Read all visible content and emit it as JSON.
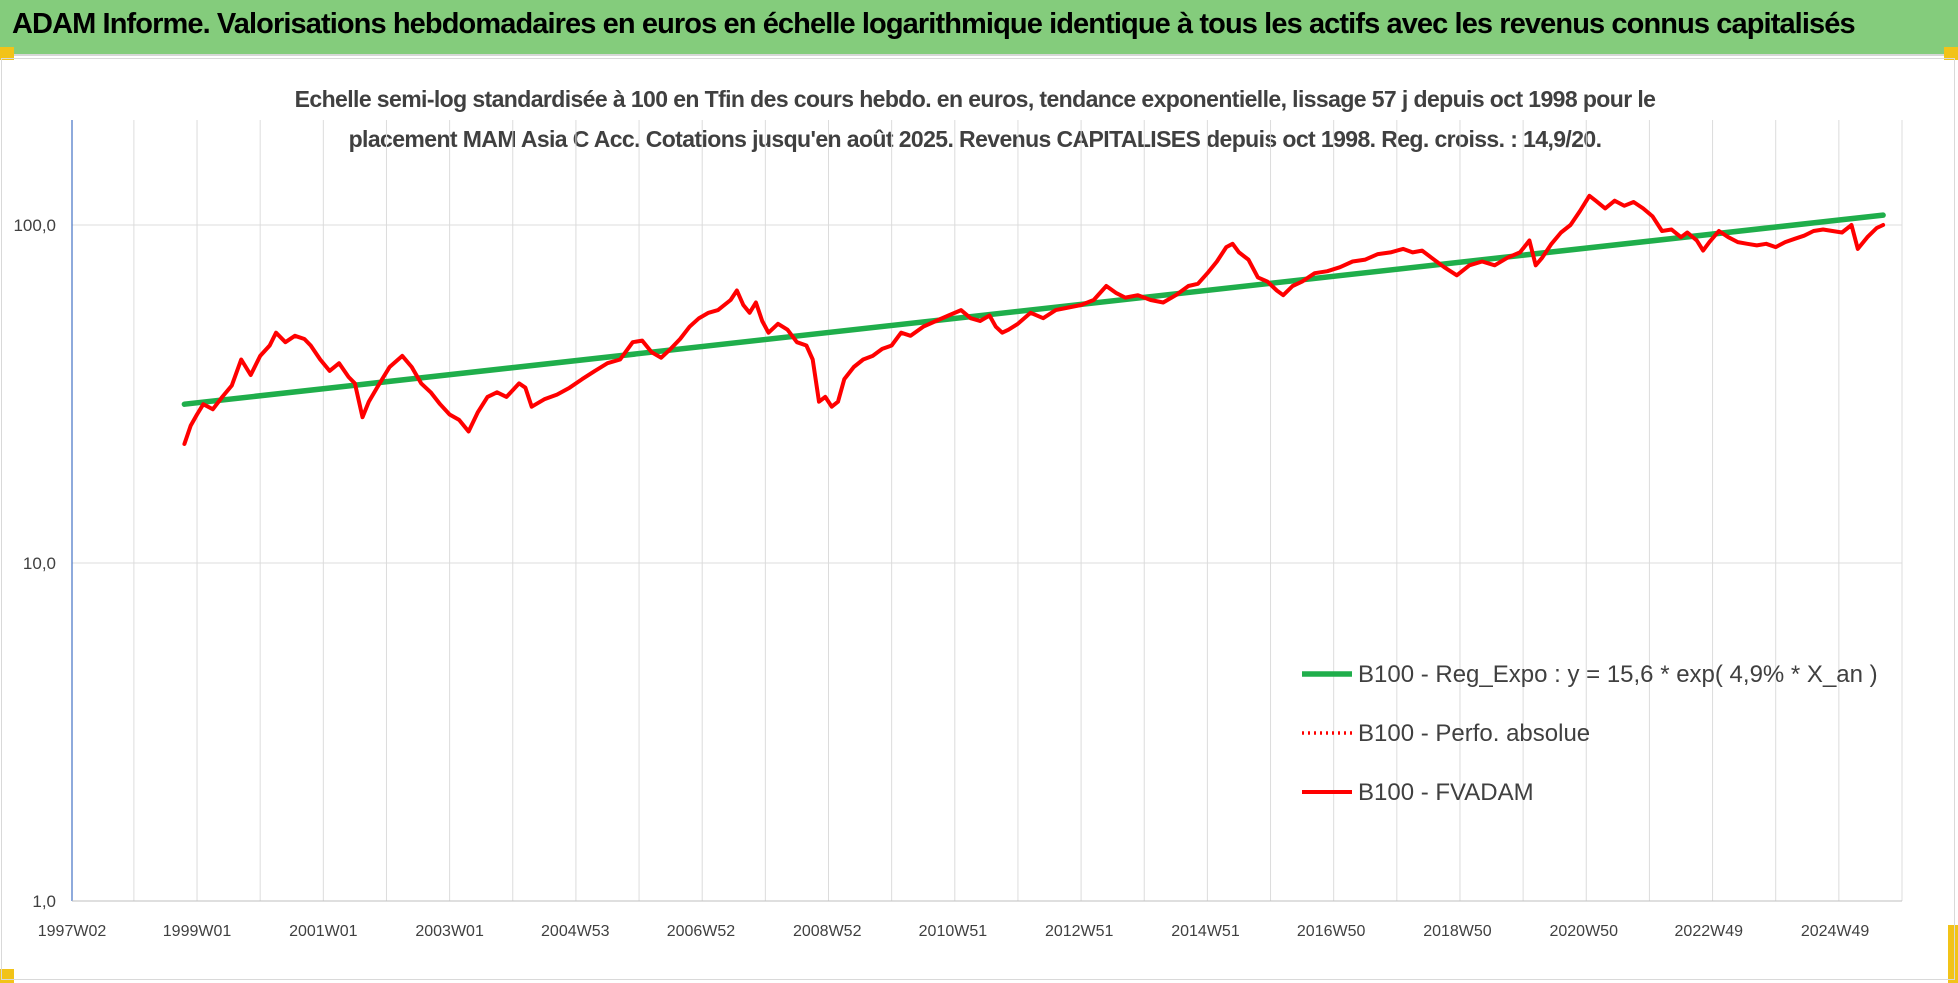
{
  "header": {
    "title": "ADAM Informe. Valorisations hebdomadaires en euros en échelle logarithmique identique à tous les actifs avec les revenus connus capitalisés"
  },
  "colors": {
    "header_bg": "#84cc7c",
    "accent_corner": "#f2c318",
    "trend": "#1fae4b",
    "price": "#ff0000"
  },
  "chart_data": {
    "type": "line",
    "title_lines": [
      "Echelle semi-log standardisée à 100 en Tfin des cours hebdo. en euros, tendance exponentielle, lissage 57 j depuis oct 1998 pour le",
      "placement MAM Asia C Acc. Cotations jusqu'en août 2025. Revenus CAPITALISES depuis oct 1998. Reg. croiss. : 14,9/20."
    ],
    "y_scale": "log",
    "ylim": [
      1,
      200
    ],
    "y_ticks": [
      {
        "value": 1,
        "label": "1,0"
      },
      {
        "value": 10,
        "label": "10,0"
      },
      {
        "value": 100,
        "label": "100,0"
      }
    ],
    "xlim": [
      1997.02,
      2026.0
    ],
    "x_ticks": [
      {
        "value": 1997.02,
        "label": "1997W02"
      },
      {
        "value": 1999.0,
        "label": "1999W01"
      },
      {
        "value": 2001.0,
        "label": "2001W01"
      },
      {
        "value": 2003.0,
        "label": "2003W01"
      },
      {
        "value": 2004.99,
        "label": "2004W53"
      },
      {
        "value": 2006.98,
        "label": "2006W52"
      },
      {
        "value": 2008.98,
        "label": "2008W52"
      },
      {
        "value": 2010.97,
        "label": "2010W51"
      },
      {
        "value": 2012.97,
        "label": "2012W51"
      },
      {
        "value": 2014.97,
        "label": "2014W51"
      },
      {
        "value": 2016.96,
        "label": "2016W50"
      },
      {
        "value": 2018.96,
        "label": "2018W50"
      },
      {
        "value": 2020.96,
        "label": "2020W50"
      },
      {
        "value": 2022.94,
        "label": "2022W49"
      },
      {
        "value": 2024.94,
        "label": "2024W49"
      }
    ],
    "vertical_grid": [
      1998.0,
      1999.0,
      2000.0,
      2001.0,
      2002.0,
      2003.0,
      2004.0,
      2005.0,
      2006.0,
      2007.0,
      2008.0,
      2009.0,
      2010.0,
      2011.0,
      2012.0,
      2013.0,
      2014.0,
      2015.0,
      2016.0,
      2017.0,
      2018.0,
      2019.0,
      2020.0,
      2021.0,
      2022.0,
      2023.0,
      2024.0,
      2025.0,
      2026.0
    ],
    "grid": true,
    "legend_position": "right, lower middle",
    "series": [
      {
        "name": "B100 - Reg_Expo : y = 15,6 * exp( 4,9% *  X_an )",
        "color": "#1fae4b",
        "style": "solid",
        "points": [
          [
            1998.8,
            29.5
          ],
          [
            2025.7,
            107
          ]
        ]
      },
      {
        "name": "B100 - Perfo. absolue",
        "color": "#ff0000",
        "style": "dotted",
        "points": []
      },
      {
        "name": "B100 - FVADAM",
        "color": "#ff0000",
        "style": "solid",
        "points": [
          [
            1998.8,
            22.5
          ],
          [
            1998.9,
            25.5
          ],
          [
            1999.0,
            27.5
          ],
          [
            1999.1,
            29.5
          ],
          [
            1999.25,
            28.5
          ],
          [
            1999.4,
            31
          ],
          [
            1999.55,
            33.5
          ],
          [
            1999.7,
            40
          ],
          [
            1999.85,
            36
          ],
          [
            2000.0,
            41
          ],
          [
            2000.15,
            44
          ],
          [
            2000.25,
            48
          ],
          [
            2000.4,
            45
          ],
          [
            2000.55,
            47
          ],
          [
            2000.7,
            46
          ],
          [
            2000.8,
            44
          ],
          [
            2000.95,
            40
          ],
          [
            2001.1,
            37
          ],
          [
            2001.25,
            39
          ],
          [
            2001.4,
            35.5
          ],
          [
            2001.5,
            34
          ],
          [
            2001.62,
            27
          ],
          [
            2001.72,
            30
          ],
          [
            2001.85,
            33
          ],
          [
            2002.05,
            38
          ],
          [
            2002.25,
            41
          ],
          [
            2002.4,
            38
          ],
          [
            2002.55,
            34
          ],
          [
            2002.7,
            32
          ],
          [
            2002.85,
            29.5
          ],
          [
            2003.0,
            27.5
          ],
          [
            2003.15,
            26.5
          ],
          [
            2003.3,
            24.5
          ],
          [
            2003.45,
            28
          ],
          [
            2003.6,
            31
          ],
          [
            2003.75,
            32
          ],
          [
            2003.9,
            31
          ],
          [
            2004.1,
            34
          ],
          [
            2004.2,
            33
          ],
          [
            2004.3,
            29
          ],
          [
            2004.5,
            30.5
          ],
          [
            2004.7,
            31.5
          ],
          [
            2004.9,
            33
          ],
          [
            2005.1,
            35
          ],
          [
            2005.3,
            37
          ],
          [
            2005.5,
            39
          ],
          [
            2005.7,
            40
          ],
          [
            2005.9,
            45
          ],
          [
            2006.05,
            45.5
          ],
          [
            2006.2,
            42
          ],
          [
            2006.35,
            40.5
          ],
          [
            2006.5,
            43
          ],
          [
            2006.65,
            46
          ],
          [
            2006.8,
            50
          ],
          [
            2006.95,
            53
          ],
          [
            2007.1,
            55
          ],
          [
            2007.25,
            56
          ],
          [
            2007.45,
            60
          ],
          [
            2007.55,
            64
          ],
          [
            2007.65,
            58
          ],
          [
            2007.75,
            55
          ],
          [
            2007.85,
            59
          ],
          [
            2007.95,
            52
          ],
          [
            2008.05,
            48
          ],
          [
            2008.2,
            51
          ],
          [
            2008.35,
            49
          ],
          [
            2008.5,
            45
          ],
          [
            2008.65,
            44
          ],
          [
            2008.75,
            40
          ],
          [
            2008.85,
            30
          ],
          [
            2008.95,
            31
          ],
          [
            2009.05,
            29
          ],
          [
            2009.15,
            30
          ],
          [
            2009.25,
            35
          ],
          [
            2009.4,
            38
          ],
          [
            2009.55,
            40
          ],
          [
            2009.7,
            41
          ],
          [
            2009.85,
            43
          ],
          [
            2010.0,
            44
          ],
          [
            2010.15,
            48
          ],
          [
            2010.3,
            47
          ],
          [
            2010.5,
            50
          ],
          [
            2010.7,
            52
          ],
          [
            2010.9,
            54
          ],
          [
            2011.1,
            56
          ],
          [
            2011.25,
            53
          ],
          [
            2011.4,
            52
          ],
          [
            2011.55,
            54
          ],
          [
            2011.65,
            50
          ],
          [
            2011.75,
            48
          ],
          [
            2011.85,
            49
          ],
          [
            2012.0,
            51
          ],
          [
            2012.2,
            55
          ],
          [
            2012.4,
            53
          ],
          [
            2012.6,
            56
          ],
          [
            2012.8,
            57
          ],
          [
            2013.0,
            58
          ],
          [
            2013.2,
            60
          ],
          [
            2013.4,
            66
          ],
          [
            2013.55,
            63
          ],
          [
            2013.7,
            61
          ],
          [
            2013.9,
            62
          ],
          [
            2014.1,
            60
          ],
          [
            2014.3,
            59
          ],
          [
            2014.5,
            62
          ],
          [
            2014.7,
            66
          ],
          [
            2014.85,
            67
          ],
          [
            2015.0,
            72
          ],
          [
            2015.15,
            78
          ],
          [
            2015.3,
            86
          ],
          [
            2015.4,
            88
          ],
          [
            2015.5,
            83
          ],
          [
            2015.65,
            79
          ],
          [
            2015.8,
            70
          ],
          [
            2015.95,
            68
          ],
          [
            2016.1,
            64
          ],
          [
            2016.2,
            62
          ],
          [
            2016.35,
            66
          ],
          [
            2016.5,
            68
          ],
          [
            2016.7,
            72
          ],
          [
            2016.9,
            73
          ],
          [
            2017.1,
            75
          ],
          [
            2017.3,
            78
          ],
          [
            2017.5,
            79
          ],
          [
            2017.7,
            82
          ],
          [
            2017.9,
            83
          ],
          [
            2018.1,
            85
          ],
          [
            2018.25,
            83
          ],
          [
            2018.4,
            84
          ],
          [
            2018.55,
            80
          ],
          [
            2018.75,
            75
          ],
          [
            2018.95,
            71
          ],
          [
            2019.15,
            76
          ],
          [
            2019.35,
            78
          ],
          [
            2019.55,
            76
          ],
          [
            2019.75,
            80
          ],
          [
            2019.95,
            83
          ],
          [
            2020.1,
            90
          ],
          [
            2020.2,
            76
          ],
          [
            2020.3,
            80
          ],
          [
            2020.45,
            88
          ],
          [
            2020.6,
            95
          ],
          [
            2020.75,
            100
          ],
          [
            2020.9,
            110
          ],
          [
            2021.05,
            122
          ],
          [
            2021.15,
            118
          ],
          [
            2021.3,
            112
          ],
          [
            2021.45,
            118
          ],
          [
            2021.6,
            114
          ],
          [
            2021.75,
            117
          ],
          [
            2021.9,
            112
          ],
          [
            2022.05,
            106
          ],
          [
            2022.2,
            96
          ],
          [
            2022.35,
            97
          ],
          [
            2022.5,
            92
          ],
          [
            2022.6,
            95
          ],
          [
            2022.75,
            90
          ],
          [
            2022.85,
            84
          ],
          [
            2022.95,
            89
          ],
          [
            2023.1,
            96
          ],
          [
            2023.25,
            92
          ],
          [
            2023.4,
            89
          ],
          [
            2023.55,
            88
          ],
          [
            2023.7,
            87
          ],
          [
            2023.85,
            88
          ],
          [
            2024.0,
            86
          ],
          [
            2024.15,
            89
          ],
          [
            2024.3,
            91
          ],
          [
            2024.45,
            93
          ],
          [
            2024.6,
            96
          ],
          [
            2024.75,
            97
          ],
          [
            2024.9,
            96
          ],
          [
            2025.05,
            95
          ],
          [
            2025.2,
            100
          ],
          [
            2025.3,
            85
          ],
          [
            2025.45,
            92
          ],
          [
            2025.6,
            98
          ],
          [
            2025.7,
            100
          ]
        ]
      }
    ]
  }
}
